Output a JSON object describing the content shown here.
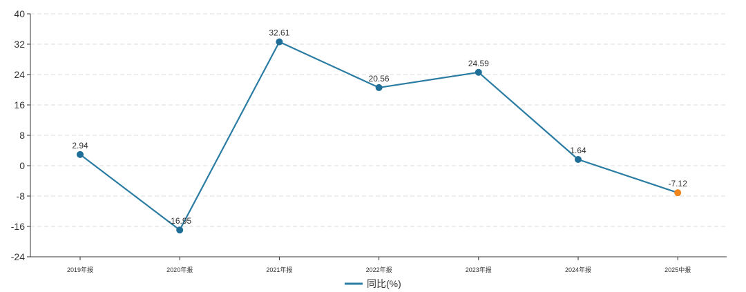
{
  "chart_data": {
    "type": "line",
    "categories": [
      "2019年报",
      "2020年报",
      "2021年报",
      "2022年报",
      "2023年报",
      "2024年报",
      "2025中报"
    ],
    "series": [
      {
        "name": "同比(%)",
        "values": [
          2.94,
          -16.95,
          32.61,
          20.56,
          24.59,
          1.64,
          -7.12
        ],
        "labels": [
          "2.94",
          "-16.95",
          "32.61",
          "20.56",
          "24.59",
          "1.64",
          "-7.12"
        ]
      }
    ],
    "ylim": [
      -24,
      40
    ],
    "yticks": [
      "-24",
      "-16",
      "-8",
      "0",
      "8",
      "16",
      "24",
      "32",
      "40"
    ],
    "grid": true,
    "legend": "bottom-center",
    "colors": {
      "line": "#2b7ca3",
      "point": "#1f6e97",
      "highlight_point": "#f0861d",
      "grid": "#dddddd",
      "axis": "#333333"
    },
    "highlight_index": 6
  }
}
